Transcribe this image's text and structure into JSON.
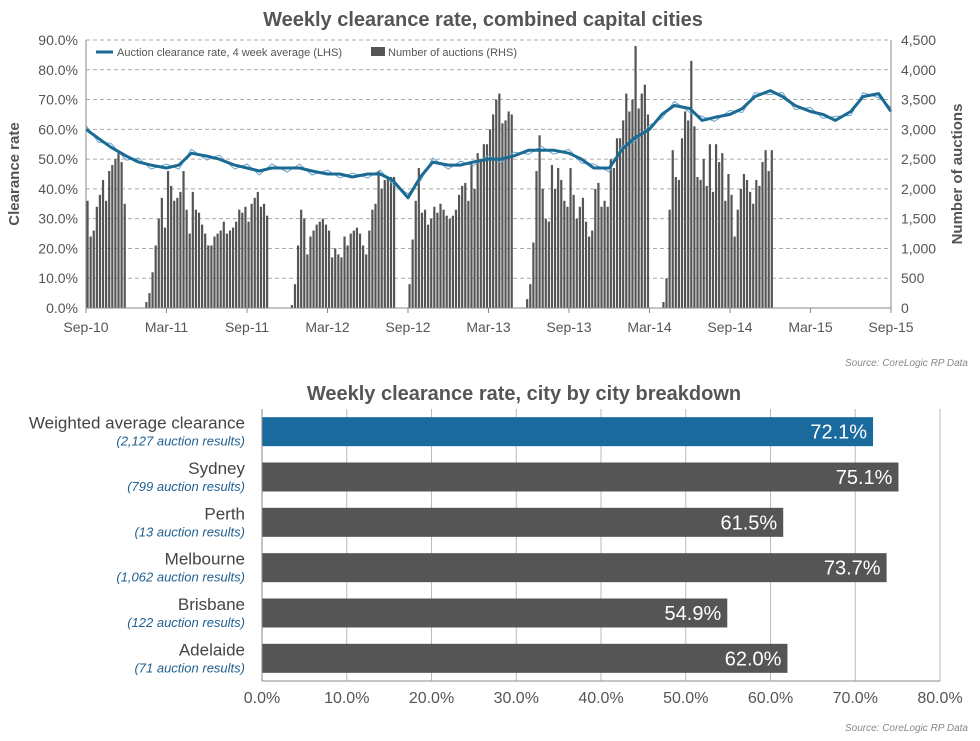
{
  "chart_data": [
    {
      "type": "line",
      "title": "Weekly clearance rate, combined capital cities",
      "ylabel": "Clearance rate",
      "y2label": "Number of auctions",
      "ylim": [
        0,
        90
      ],
      "y2lim": [
        0,
        4500
      ],
      "y_ticks": [
        "0.0%",
        "10.0%",
        "20.0%",
        "30.0%",
        "40.0%",
        "50.0%",
        "60.0%",
        "70.0%",
        "80.0%",
        "90.0%"
      ],
      "y2_ticks": [
        "0",
        "500",
        "1,000",
        "1,500",
        "2,000",
        "2,500",
        "3,000",
        "3,500",
        "4,000",
        "4,500"
      ],
      "x_ticks": [
        "Sep-10",
        "Mar-11",
        "Sep-11",
        "Mar-12",
        "Sep-12",
        "Mar-13",
        "Sep-13",
        "Mar-14",
        "Sep-14",
        "Mar-15",
        "Sep-15"
      ],
      "legend": [
        "Auction clearance rate, 4 week average (LHS)",
        "Number of auctions (RHS)"
      ],
      "legend_position": "top-left",
      "grid": true,
      "colors": {
        "line": "#1a6a94",
        "line_thin": "#6aa2c8",
        "bars": "#555555"
      },
      "series": [
        {
          "name": "Auction clearance rate, 4 week average (LHS)",
          "axis": "left",
          "x": [
            0,
            4,
            8,
            13,
            17,
            21,
            26,
            30,
            34,
            39,
            43,
            48,
            52,
            56,
            60,
            65,
            69,
            73,
            78,
            82,
            86,
            91,
            95,
            99,
            104,
            108,
            112,
            117,
            121,
            125,
            130,
            134,
            138,
            143,
            147,
            151,
            156,
            160,
            164,
            169,
            173,
            177,
            182,
            186,
            190,
            195,
            199,
            203,
            208,
            212,
            216,
            221,
            225,
            229,
            234,
            238,
            242,
            247,
            251,
            256,
            260
          ],
          "values": [
            60,
            57,
            54,
            51,
            49,
            48,
            47,
            48,
            52,
            51,
            50,
            48,
            47,
            46,
            47,
            47,
            47,
            46,
            45,
            45,
            44,
            45,
            45,
            43,
            37,
            44,
            49,
            48,
            48,
            49,
            50,
            50,
            51,
            53,
            53,
            53,
            52,
            50,
            47,
            47,
            53,
            57,
            60,
            65,
            68,
            67,
            63,
            64,
            65,
            67,
            71,
            73,
            71,
            68,
            66,
            65,
            63,
            66,
            71,
            72,
            66
          ],
          "x_unit": "weeks from Sep-10"
        },
        {
          "name": "Number of auctions (RHS)",
          "axis": "right",
          "type": "bar",
          "x_unit": "weeks from Sep-10",
          "values": [
            1800,
            1200,
            1300,
            1700,
            1900,
            2150,
            1800,
            2300,
            2400,
            2500,
            2600,
            2450,
            1750,
            0,
            0,
            0,
            0,
            0,
            0,
            100,
            250,
            600,
            1050,
            1500,
            1850,
            1350,
            2300,
            2050,
            1800,
            1850,
            1950,
            2300,
            1650,
            1250,
            1950,
            1650,
            1600,
            1400,
            1250,
            1050,
            1050,
            1200,
            1250,
            1300,
            1450,
            1250,
            1300,
            1350,
            1450,
            1650,
            1600,
            1700,
            1450,
            1750,
            1850,
            1950,
            1700,
            1750,
            1550,
            0,
            0,
            0,
            0,
            0,
            0,
            0,
            50,
            400,
            1050,
            1650,
            1500,
            900,
            1200,
            1300,
            1400,
            1450,
            1500,
            1400,
            1300,
            850,
            1000,
            900,
            850,
            1200,
            1050,
            1250,
            1300,
            1350,
            1250,
            1050,
            900,
            1300,
            1650,
            1750,
            2300,
            2000,
            2150,
            2200,
            2200,
            2200,
            0,
            0,
            0,
            0,
            400,
            1150,
            1800,
            2350,
            1600,
            1650,
            1400,
            1500,
            1700,
            1600,
            1750,
            1650,
            1550,
            1500,
            1550,
            1650,
            1900,
            2050,
            2100,
            1800,
            2450,
            2000,
            2600,
            2500,
            2750,
            2750,
            3000,
            3250,
            3500,
            3600,
            3100,
            3150,
            3300,
            3250,
            0,
            0,
            0,
            0,
            150,
            400,
            1100,
            2300,
            2900,
            2000,
            1500,
            1450,
            2400,
            2000,
            2350,
            2150,
            1800,
            1700,
            2350,
            1900,
            1500,
            1700,
            1850,
            1450,
            1200,
            1300,
            2000,
            2100,
            1700,
            1800,
            1700,
            2500,
            2350,
            2850,
            2850,
            3150,
            3600,
            3300,
            3500,
            4400,
            3350,
            3600,
            3750,
            3250,
            0,
            0,
            0,
            0,
            100,
            500,
            1650,
            2650,
            2200,
            2150,
            2850,
            3300,
            3150,
            4150,
            3050,
            2200,
            2150,
            2500,
            2050,
            2750,
            1950,
            2750,
            2450,
            2600,
            1800,
            2250,
            1900,
            1200,
            1650,
            2000,
            2250,
            2150,
            1950,
            1750,
            2150,
            2050,
            2450,
            2650,
            2300,
            2650
          ]
        }
      ]
    },
    {
      "type": "bar",
      "orientation": "horizontal",
      "title": "Weekly clearance rate, city by city breakdown",
      "xlim": [
        0,
        80
      ],
      "x_ticks": [
        "0.0%",
        "10.0%",
        "20.0%",
        "30.0%",
        "40.0%",
        "50.0%",
        "60.0%",
        "70.0%",
        "80.0%"
      ],
      "categories": [
        "Weighted average clearance",
        "Sydney",
        "Perth",
        "Melbourne",
        "Brisbane",
        "Adelaide"
      ],
      "subtitles": [
        "(2,127 auction results)",
        "(799 auction results)",
        "(13 auction results)",
        "(1,062 auction results)",
        "(122 auction results)",
        "(71 auction results)"
      ],
      "values": [
        72.1,
        75.1,
        61.5,
        73.7,
        54.9,
        62.0
      ],
      "value_labels": [
        "72.1%",
        "75.1%",
        "61.5%",
        "73.7%",
        "54.9%",
        "62.0%"
      ],
      "colors": {
        "highlight": "#1a6a9e",
        "default": "#555555"
      }
    }
  ],
  "sources": {
    "top": "Source: CoreLogic  RP Data",
    "bottom": "Source: CoreLogic  RP Data"
  }
}
